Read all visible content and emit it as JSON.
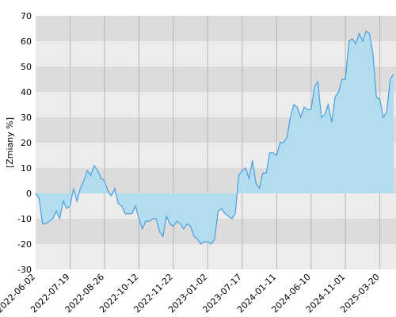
{
  "chart_data": {
    "type": "area",
    "y_label": "[Zmiany %]",
    "categories": [
      "2022-06-02",
      null,
      null,
      null,
      null,
      null,
      null,
      null,
      null,
      null,
      "2022-07-19",
      null,
      null,
      null,
      null,
      null,
      null,
      null,
      null,
      null,
      "2022-08-26",
      null,
      null,
      null,
      null,
      null,
      null,
      null,
      null,
      null,
      "2022-10-12",
      null,
      null,
      null,
      null,
      null,
      null,
      null,
      null,
      null,
      "2022-11-22",
      null,
      null,
      null,
      null,
      null,
      null,
      null,
      null,
      null,
      "2023-01-02",
      null,
      null,
      null,
      null,
      null,
      null,
      null,
      null,
      null,
      "2023-07-17",
      null,
      null,
      null,
      null,
      null,
      null,
      null,
      null,
      null,
      "2024-01-11",
      null,
      null,
      null,
      null,
      null,
      null,
      null,
      null,
      null,
      "2024-06-10",
      null,
      null,
      null,
      null,
      null,
      null,
      null,
      null,
      null,
      "2024-11-01",
      null,
      null,
      null,
      null,
      null,
      null,
      null,
      null,
      null,
      "2025-03-20",
      null,
      null,
      null,
      null
    ],
    "values": [
      0,
      -2,
      -12,
      -12,
      -11,
      -10,
      -7,
      -10,
      -3,
      -6,
      -5,
      2,
      -3,
      2,
      5,
      9,
      7,
      11,
      9,
      6,
      5,
      1,
      -1,
      2,
      -4,
      -5,
      -8,
      -8,
      -8,
      -5,
      -10,
      -14,
      -11,
      -11,
      -10,
      -10,
      -15,
      -17,
      -9,
      -12,
      -13,
      -11,
      -12,
      -14,
      -12,
      -13,
      -17,
      -18,
      -20,
      -19,
      -19,
      -20,
      -18,
      -7,
      -6,
      -8,
      -9,
      -10,
      -8,
      7,
      9,
      10,
      6,
      13,
      4,
      2,
      8,
      8,
      16,
      16,
      15,
      20,
      20,
      22,
      30,
      35,
      34,
      30,
      34,
      33,
      33,
      42,
      44,
      30,
      31,
      35,
      28,
      38,
      40,
      45,
      45,
      60,
      61,
      59,
      63,
      60,
      64,
      63,
      55,
      38,
      37,
      30,
      32,
      45,
      47
    ],
    "line_color": "#4a9fe0",
    "fill_color": "#b3dcef",
    "ylim": [
      -30,
      70
    ],
    "yticks": [
      -30,
      -20,
      -10,
      0,
      10,
      20,
      30,
      40,
      50,
      60,
      70
    ],
    "grid": true
  }
}
